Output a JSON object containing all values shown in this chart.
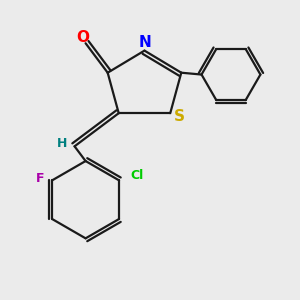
{
  "bg_color": "#ebebeb",
  "bond_color": "#1a1a1a",
  "O_color": "#ff0000",
  "N_color": "#0000ff",
  "S_color": "#ccaa00",
  "H_color": "#008080",
  "F_color": "#aa00aa",
  "Cl_color": "#00cc00",
  "lw": 1.6,
  "xlim": [
    0.0,
    7.5
  ],
  "ylim": [
    0.5,
    8.5
  ]
}
